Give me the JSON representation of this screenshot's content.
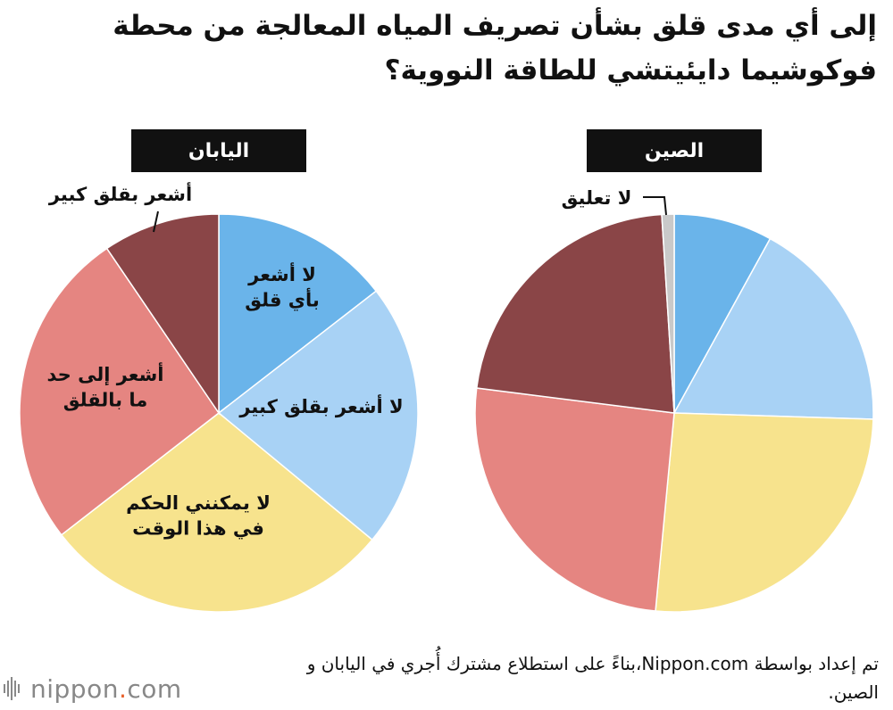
{
  "title": "إلى أي مدى قلق بشأن تصريف المياه المعالجة من محطة فوكوشيما دايئيتشي للطاقة النووية؟",
  "source": "تم إعداد بواسطة Nippon.com،بناءً على استطلاع مشترك أُجري في اليابان و الصين.",
  "logo": {
    "text_main": "nippon",
    "text_dot": ".",
    "text_tld": "com"
  },
  "chart_data": [
    {
      "type": "pie",
      "title": "اليابان",
      "slices": [
        {
          "label": "لا أشعر بأي قلق",
          "label_lines": [
            "لا أشعر",
            "بأي قلق"
          ],
          "value": 14.5,
          "color": "#6ab4ea"
        },
        {
          "label": "لا أشعر بقلق كبير",
          "label_lines": [
            "لا أشعر بقلق كبير"
          ],
          "value": 21.5,
          "color": "#a8d2f5"
        },
        {
          "label": "لا يمكنني الحكم في هذا الوقت",
          "label_lines": [
            "لا يمكنني الحكم",
            "في هذا الوقت"
          ],
          "value": 28.5,
          "color": "#f7e38d"
        },
        {
          "label": "أشعر إلى حد ما بالقلق",
          "label_lines": [
            "أشعر إلى حد",
            "ما بالقلق"
          ],
          "value": 26,
          "color": "#e58581"
        },
        {
          "label": "أشعر بقلق كبير",
          "label_lines": [
            "أشعر بقلق كبير"
          ],
          "value": 9.5,
          "color": "#8a4547"
        }
      ]
    },
    {
      "type": "pie",
      "title": "الصين",
      "slices": [
        {
          "label": "لا أشعر بأي قلق",
          "value": 8,
          "color": "#6ab4ea"
        },
        {
          "label": "لا أشعر بقلق كبير",
          "value": 17.5,
          "color": "#a8d2f5"
        },
        {
          "label": "لا يمكنني الحكم في هذا الوقت",
          "value": 26,
          "color": "#f7e38d"
        },
        {
          "label": "أشعر إلى حد ما بالقلق",
          "value": 25.5,
          "color": "#e58581"
        },
        {
          "label": "أشعر بقلق كبير",
          "value": 22,
          "color": "#8a4547"
        },
        {
          "label": "لا تعليق",
          "value": 1,
          "color": "#c9c9c9"
        }
      ]
    }
  ]
}
